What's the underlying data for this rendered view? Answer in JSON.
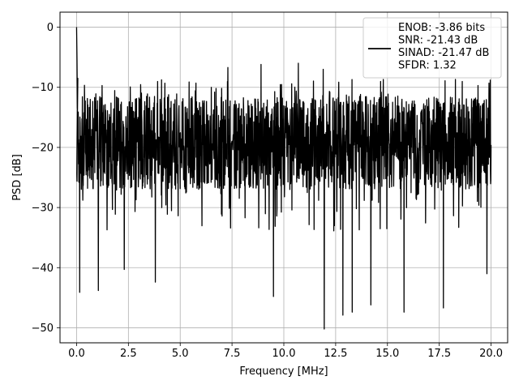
{
  "chart_data": {
    "type": "line",
    "xlabel": "Frequency [MHz]",
    "ylabel": "PSD [dB]",
    "xlim": [
      -0.8,
      20.8
    ],
    "ylim": [
      -52.5,
      2.5
    ],
    "xticks": [
      0.0,
      2.5,
      5.0,
      7.5,
      10.0,
      12.5,
      15.0,
      17.5,
      20.0
    ],
    "xtick_labels": [
      "0.0",
      "2.5",
      "5.0",
      "7.5",
      "10.0",
      "12.5",
      "15.0",
      "17.5",
      "20.0"
    ],
    "yticks": [
      0,
      -10,
      -20,
      -30,
      -40,
      -50
    ],
    "ytick_labels": [
      "0",
      "−10",
      "−20",
      "−30",
      "−40",
      "−50"
    ],
    "grid": true,
    "legend_placement": "top-right",
    "series": [
      {
        "name": "ENOB: -3.86 bits\nSNR: -21.43 dB\nSINAD: -21.47 dB\nSFDR: 1.32",
        "color": "#000000",
        "x_range": [
          0.0,
          20.0
        ],
        "spike": {
          "x": 0.0,
          "y": 0.0
        },
        "baseline_db": -19.0,
        "upper_envelope_db": -11.5,
        "lower_envelope_db": -27.0,
        "notable_peaks": [
          {
            "x": 8.9,
            "y": -6.2
          },
          {
            "x": 10.7,
            "y": -6.0
          },
          {
            "x": 7.3,
            "y": -6.7
          },
          {
            "x": 11.9,
            "y": -7.0
          },
          {
            "x": 14.2,
            "y": -7.0
          }
        ],
        "notable_dips": [
          {
            "x": 0.15,
            "y": -44.1
          },
          {
            "x": 1.05,
            "y": -43.8
          },
          {
            "x": 3.8,
            "y": -42.4
          },
          {
            "x": 9.5,
            "y": -44.8
          },
          {
            "x": 11.95,
            "y": -50.2
          },
          {
            "x": 12.85,
            "y": -47.9
          },
          {
            "x": 13.3,
            "y": -47.4
          },
          {
            "x": 15.8,
            "y": -47.4
          },
          {
            "x": 17.7,
            "y": -46.7
          },
          {
            "x": 19.8,
            "y": -41.0
          },
          {
            "x": 2.3,
            "y": -40.3
          },
          {
            "x": 14.2,
            "y": -46.2
          }
        ]
      }
    ]
  }
}
